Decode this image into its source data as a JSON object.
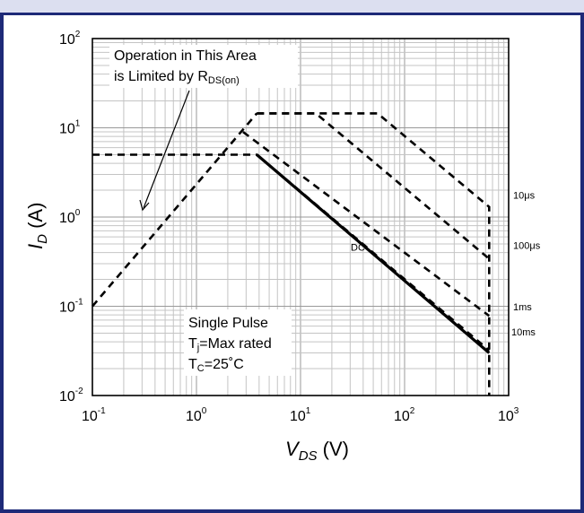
{
  "chart_data": {
    "type": "line",
    "x_scale": "log",
    "y_scale": "log",
    "xlim": [
      0.1,
      1000
    ],
    "ylim": [
      0.01,
      100
    ],
    "grid": true,
    "xticks": [
      {
        "base": "10",
        "exp": "-1"
      },
      {
        "base": "10",
        "exp": "0"
      },
      {
        "base": "10",
        "exp": "1"
      },
      {
        "base": "10",
        "exp": "2"
      },
      {
        "base": "10",
        "exp": "3"
      }
    ],
    "yticks": [
      {
        "base": "10",
        "exp": "-2"
      },
      {
        "base": "10",
        "exp": "-1"
      },
      {
        "base": "10",
        "exp": "0"
      },
      {
        "base": "10",
        "exp": "1"
      },
      {
        "base": "10",
        "exp": "2"
      }
    ],
    "xlabel": {
      "sym": "V",
      "sub": "DS",
      "unit": " (V)"
    },
    "ylabel": {
      "sym": "I",
      "sub": "D",
      "unit": " (A)"
    },
    "annotation": {
      "line1": "Operation  in This Area",
      "line2_main": "is Limited by R",
      "line2_sub": "DS(on)"
    },
    "conditions": {
      "line1": "Single Pulse",
      "line2_main": "T",
      "line2_sub": "j",
      "line2_rest": "=Max rated",
      "line3_main": "T",
      "line3_sub": "C",
      "line3_rest": "=25˚C"
    },
    "rds_limit": {
      "points": [
        [
          0.1,
          0.1
        ],
        [
          3.8,
          14.5
        ]
      ],
      "style": "dashed"
    },
    "series": [
      {
        "name": "10μs",
        "style": "dashed",
        "points": [
          [
            3.8,
            14.5
          ],
          [
            55,
            14.5
          ],
          [
            650,
            1.3
          ],
          [
            650,
            0.01
          ]
        ]
      },
      {
        "name": "100μs",
        "style": "dashed",
        "points": [
          [
            3.8,
            14.5
          ],
          [
            14,
            14.5
          ],
          [
            650,
            0.34
          ]
        ]
      },
      {
        "name": "1ms",
        "style": "dashed",
        "points": [
          [
            2.8,
            9.0
          ],
          [
            650,
            0.078
          ]
        ]
      },
      {
        "name": "10ms",
        "style": "dashed",
        "points": [
          [
            0.1,
            5.0
          ],
          [
            3.8,
            5.0
          ],
          [
            650,
            0.032
          ]
        ]
      },
      {
        "name": "DC",
        "style": "solid",
        "points": [
          [
            3.8,
            5.0
          ],
          [
            650,
            0.03
          ]
        ]
      }
    ]
  }
}
